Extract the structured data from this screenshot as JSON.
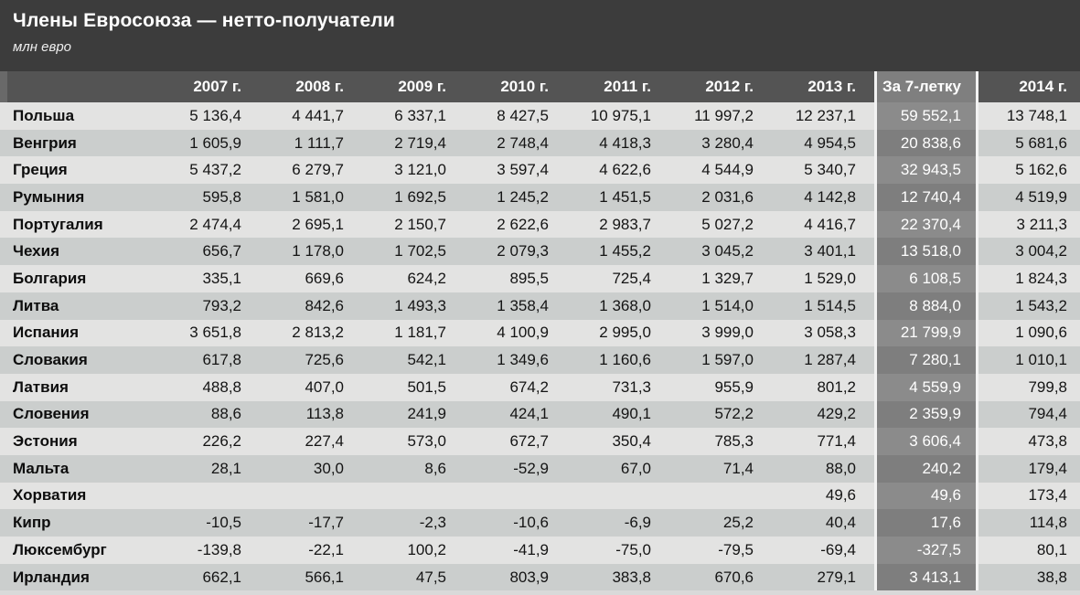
{
  "chart_data": {
    "type": "table",
    "title": "Члены Евросоюза — нетто-получатели",
    "units": "млн евро",
    "columns": [
      "2007 г.",
      "2008 г.",
      "2009 г.",
      "2010 г.",
      "2011 г.",
      "2012 г.",
      "2013 г.",
      "За 7-летку",
      "2014 г."
    ],
    "highlight_column": "За 7-летку",
    "rows": [
      {
        "country": "Польша",
        "values": [
          "5 136,4",
          "4 441,7",
          "6 337,1",
          "8 427,5",
          "10 975,1",
          "11 997,2",
          "12 237,1",
          "59 552,1",
          "13 748,1"
        ]
      },
      {
        "country": "Венгрия",
        "values": [
          "1 605,9",
          "1 111,7",
          "2 719,4",
          "2 748,4",
          "4 418,3",
          "3 280,4",
          "4 954,5",
          "20 838,6",
          "5 681,6"
        ]
      },
      {
        "country": "Греция",
        "values": [
          "5 437,2",
          "6 279,7",
          "3 121,0",
          "3 597,4",
          "4 622,6",
          "4 544,9",
          "5 340,7",
          "32 943,5",
          "5 162,6"
        ]
      },
      {
        "country": "Румыния",
        "values": [
          "595,8",
          "1 581,0",
          "1 692,5",
          "1 245,2",
          "1 451,5",
          "2 031,6",
          "4 142,8",
          "12 740,4",
          "4 519,9"
        ]
      },
      {
        "country": "Португалия",
        "values": [
          "2 474,4",
          "2 695,1",
          "2 150,7",
          "2 622,6",
          "2 983,7",
          "5 027,2",
          "4 416,7",
          "22 370,4",
          "3 211,3"
        ]
      },
      {
        "country": "Чехия",
        "values": [
          "656,7",
          "1 178,0",
          "1 702,5",
          "2 079,3",
          "1 455,2",
          "3 045,2",
          "3 401,1",
          "13 518,0",
          "3 004,2"
        ]
      },
      {
        "country": "Болгария",
        "values": [
          "335,1",
          "669,6",
          "624,2",
          "895,5",
          "725,4",
          "1 329,7",
          "1 529,0",
          "6 108,5",
          "1 824,3"
        ]
      },
      {
        "country": "Литва",
        "values": [
          "793,2",
          "842,6",
          "1 493,3",
          "1 358,4",
          "1 368,0",
          "1 514,0",
          "1 514,5",
          "8 884,0",
          "1 543,2"
        ]
      },
      {
        "country": "Испания",
        "values": [
          "3 651,8",
          "2 813,2",
          "1 181,7",
          "4 100,9",
          "2 995,0",
          "3 999,0",
          "3 058,3",
          "21 799,9",
          "1 090,6"
        ]
      },
      {
        "country": "Словакия",
        "values": [
          "617,8",
          "725,6",
          "542,1",
          "1 349,6",
          "1 160,6",
          "1 597,0",
          "1 287,4",
          "7 280,1",
          "1 010,1"
        ]
      },
      {
        "country": "Латвия",
        "values": [
          "488,8",
          "407,0",
          "501,5",
          "674,2",
          "731,3",
          "955,9",
          "801,2",
          "4 559,9",
          "799,8"
        ]
      },
      {
        "country": "Словения",
        "values": [
          "88,6",
          "113,8",
          "241,9",
          "424,1",
          "490,1",
          "572,2",
          "429,2",
          "2 359,9",
          "794,4"
        ]
      },
      {
        "country": "Эстония",
        "values": [
          "226,2",
          "227,4",
          "573,0",
          "672,7",
          "350,4",
          "785,3",
          "771,4",
          "3 606,4",
          "473,8"
        ]
      },
      {
        "country": "Мальта",
        "values": [
          "28,1",
          "30,0",
          "8,6",
          "-52,9",
          "67,0",
          "71,4",
          "88,0",
          "240,2",
          "179,4"
        ]
      },
      {
        "country": "Хорватия",
        "values": [
          "",
          "",
          "",
          "",
          "",
          "",
          "49,6",
          "49,6",
          "173,4"
        ]
      },
      {
        "country": "Кипр",
        "values": [
          "-10,5",
          "-17,7",
          "-2,3",
          "-10,6",
          "-6,9",
          "25,2",
          "40,4",
          "17,6",
          "114,8"
        ]
      },
      {
        "country": "Люксембург",
        "values": [
          "-139,8",
          "-22,1",
          "100,2",
          "-41,9",
          "-75,0",
          "-79,5",
          "-69,4",
          "-327,5",
          "80,1"
        ]
      },
      {
        "country": "Ирландия",
        "values": [
          "662,1",
          "566,1",
          "47,5",
          "803,9",
          "383,8",
          "670,6",
          "279,1",
          "3 413,1",
          "38,8"
        ]
      }
    ]
  },
  "colors": {
    "title_bg": "#3c3c3c",
    "header_bg": "#545454",
    "header_highlight_bg": "#7f7f7f",
    "row_light": "#e3e3e2",
    "row_dark": "#cbcecd",
    "highlight_col_light": "#8b8b8b",
    "highlight_col_dark": "#7e7e7e",
    "separator": "#f2f2f2"
  }
}
